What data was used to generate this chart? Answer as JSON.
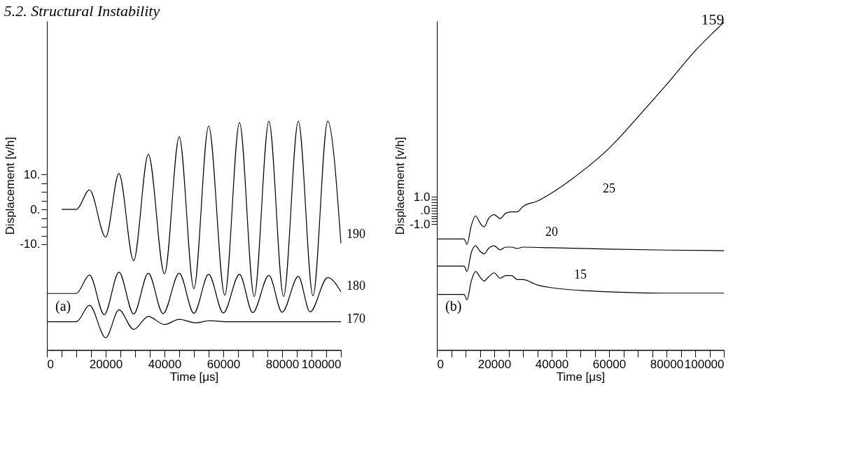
{
  "chart_data": [
    {
      "type": "line",
      "title": "5.2.  Structural Instability",
      "xlabel": "Time [μs]",
      "ylabel": "Displacement [v/h]",
      "annotations": [
        "(a)"
      ],
      "grid": false,
      "legend": false,
      "xlim": [
        0,
        100000
      ],
      "ylim": [
        -40.3,
        54
      ],
      "xticks": [
        0,
        {
          "value": 5000,
          "label": null
        },
        {
          "value": 10000,
          "label": null
        },
        {
          "value": 15000,
          "label": null
        },
        20000,
        {
          "value": 25000,
          "label": null
        },
        {
          "value": 30000,
          "label": null
        },
        {
          "value": 35000,
          "label": null
        },
        40000,
        {
          "value": 45000,
          "label": null
        },
        {
          "value": 50000,
          "label": null
        },
        {
          "value": 55000,
          "label": null
        },
        60000,
        {
          "value": 65000,
          "label": null
        },
        {
          "value": 70000,
          "label": null
        },
        {
          "value": 75000,
          "label": null
        },
        80000,
        {
          "value": 85000,
          "label": null
        },
        {
          "value": 90000,
          "label": null
        },
        {
          "value": 95000,
          "label": null
        },
        100000
      ],
      "yticks": [
        {
          "value": 10,
          "label": "10."
        },
        {
          "value": 7.5,
          "label": null
        },
        {
          "value": 5,
          "label": null
        },
        {
          "value": 2.5,
          "label": null
        },
        {
          "value": 0,
          "label": "0."
        },
        {
          "value": -2.5,
          "label": null
        },
        {
          "value": -5,
          "label": null
        },
        {
          "value": -7.5,
          "label": null
        },
        {
          "value": -10,
          "label": "-10."
        }
      ],
      "series": [
        {
          "name": "190",
          "color": "#000000",
          "x": [
            5000,
            10000,
            14500,
            20000,
            24500,
            29500,
            34500,
            40000,
            45000,
            50000,
            55000,
            60500,
            65500,
            70500,
            75500,
            80500,
            85500,
            90500,
            95500,
            100000
          ],
          "values": [
            0,
            0,
            5.6,
            -8,
            10.3,
            -14.7,
            15.8,
            -18.5,
            20.8,
            -22.7,
            23.9,
            -24.6,
            24.9,
            -25,
            25.3,
            -25,
            25.3,
            -24.8,
            25.3,
            -9.7
          ]
        },
        {
          "name": "180",
          "color": "#000000",
          "x": [
            0,
            10000,
            14500,
            19500,
            24500,
            29500,
            34500,
            39500,
            45000,
            50000,
            55000,
            60000,
            65500,
            70000,
            75500,
            80000,
            85500,
            89500,
            95500,
            100000
          ],
          "values": [
            -24.1,
            -24.1,
            -18.8,
            -30.2,
            -18,
            -30,
            -18.3,
            -29.9,
            -18.3,
            -29.8,
            -18.6,
            -29.7,
            -18.6,
            -29.6,
            -18.9,
            -29.5,
            -19.2,
            -29.4,
            -19.5,
            -23.6
          ]
        },
        {
          "name": "170",
          "color": "#000000",
          "x": [
            0,
            10000,
            14500,
            20000,
            24500,
            29500,
            34500,
            40000,
            45000,
            50500,
            55500,
            61000,
            70000,
            100000
          ],
          "values": [
            -32.2,
            -32.2,
            -27.5,
            -36.8,
            -28.8,
            -34.4,
            -30.7,
            -33,
            -31.5,
            -32.5,
            -31.9,
            -32.2,
            -32.2,
            -32.2
          ]
        }
      ]
    },
    {
      "type": "line",
      "title": "159",
      "xlabel": "Time [μs]",
      "ylabel": "Displacement [v/h]",
      "annotations": [
        "(b)"
      ],
      "grid": false,
      "legend": false,
      "xlim": [
        0,
        100000
      ],
      "ylim": [
        -10.3,
        14
      ],
      "xticks": [
        0,
        {
          "value": 5000,
          "label": null
        },
        {
          "value": 10000,
          "label": null
        },
        {
          "value": 15000,
          "label": null
        },
        20000,
        {
          "value": 25000,
          "label": null
        },
        {
          "value": 30000,
          "label": null
        },
        {
          "value": 35000,
          "label": null
        },
        40000,
        {
          "value": 45000,
          "label": null
        },
        {
          "value": 50000,
          "label": null
        },
        {
          "value": 55000,
          "label": null
        },
        60000,
        {
          "value": 65000,
          "label": null
        },
        {
          "value": 70000,
          "label": null
        },
        {
          "value": 75000,
          "label": null
        },
        80000,
        {
          "value": 85000,
          "label": null
        },
        {
          "value": 90000,
          "label": null
        },
        {
          "value": 95000,
          "label": null
        },
        100000
      ],
      "yticks": [
        {
          "value": 1,
          "label": "1.0"
        },
        {
          "value": 0.8,
          "label": null
        },
        {
          "value": 0.6,
          "label": null
        },
        {
          "value": 0.4,
          "label": null
        },
        {
          "value": 0.2,
          "label": null
        },
        {
          "value": 0,
          "label": ".0"
        },
        {
          "value": -0.2,
          "label": null
        },
        {
          "value": -0.4,
          "label": null
        },
        {
          "value": -0.6,
          "label": null
        },
        {
          "value": -0.8,
          "label": null
        },
        {
          "value": -1,
          "label": "-1.0"
        }
      ],
      "series": [
        {
          "name": "25",
          "color": "#000000",
          "x": [
            0,
            9500,
            10500,
            12000,
            13500,
            15000,
            16500,
            18000,
            20000,
            22000,
            24000,
            26000,
            28000,
            30000,
            35000,
            40000,
            50000,
            60000,
            70000,
            80000,
            90000,
            100000
          ],
          "values": [
            -2.1,
            -2.1,
            -2.5,
            -1.1,
            -0.4,
            -0.9,
            -1.2,
            -0.6,
            -0.3,
            -0.6,
            -0.2,
            -0.1,
            -0.1,
            0.3,
            0.7,
            1.3,
            2.8,
            4.6,
            6.9,
            9.3,
            11.8,
            13.9
          ]
        },
        {
          "name": "20",
          "color": "#000000",
          "x": [
            0,
            9500,
            10500,
            12000,
            13500,
            15000,
            16500,
            18000,
            20000,
            22000,
            24000,
            26000,
            28000,
            30000,
            40000,
            60000,
            80000,
            100000
          ],
          "values": [
            -4.1,
            -4.1,
            -4.5,
            -3.1,
            -2.6,
            -3.0,
            -3.2,
            -2.8,
            -2.6,
            -2.9,
            -2.7,
            -2.7,
            -2.8,
            -2.7,
            -2.75,
            -2.85,
            -2.92,
            -2.96
          ]
        },
        {
          "name": "15",
          "color": "#000000",
          "x": [
            0,
            9500,
            10500,
            12000,
            13500,
            15000,
            16500,
            18000,
            20000,
            22000,
            24000,
            26000,
            28000,
            30000,
            35000,
            40000,
            50000,
            60000,
            80000,
            100000
          ],
          "values": [
            -6.2,
            -6.2,
            -6.6,
            -5.2,
            -4.5,
            -4.9,
            -5.2,
            -4.9,
            -4.6,
            -5.0,
            -4.8,
            -4.8,
            -5.1,
            -5.1,
            -5.5,
            -5.7,
            -5.9,
            -6.0,
            -6.1,
            -6.1
          ]
        }
      ]
    }
  ]
}
